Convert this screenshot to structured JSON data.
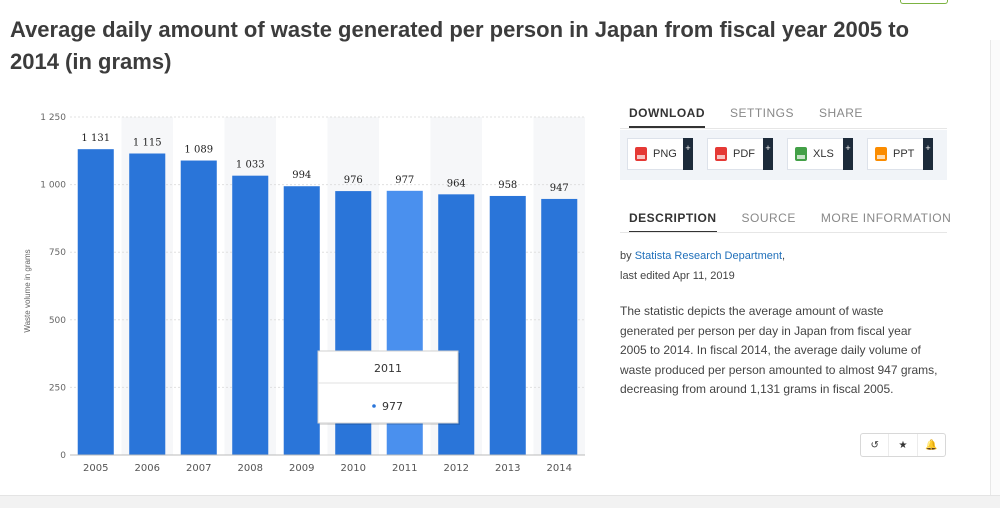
{
  "title": "Average daily amount of waste generated per person in Japan from fiscal year 2005 to 2014 (in grams)",
  "chart_data": {
    "type": "bar",
    "categories": [
      "2005",
      "2006",
      "2007",
      "2008",
      "2009",
      "2010",
      "2011",
      "2012",
      "2013",
      "2014"
    ],
    "values": [
      1131,
      1115,
      1089,
      1033,
      994,
      976,
      977,
      964,
      958,
      947
    ],
    "value_labels": [
      "1 131",
      "1 115",
      "1 089",
      "1 033",
      "994",
      "976",
      "977",
      "964",
      "958",
      "947"
    ],
    "ylabel": "Waste volume in grams",
    "ylim": [
      0,
      1250
    ],
    "yticks": [
      0,
      250,
      500,
      750,
      1000,
      1250
    ],
    "ytick_labels": [
      "0",
      "250",
      "500",
      "750",
      "1 000",
      "1 250"
    ],
    "grid": true,
    "bar_color": "#2a75d9",
    "highlight_color": "#4a90ee",
    "highlight_index": 6,
    "tooltip": {
      "title": "2011",
      "value": "977"
    }
  },
  "download_tabs": [
    "DOWNLOAD",
    "SETTINGS",
    "SHARE"
  ],
  "download_buttons": [
    {
      "label": "PNG",
      "color": "#e53935"
    },
    {
      "label": "PDF",
      "color": "#e53935"
    },
    {
      "label": "XLS",
      "color": "#43a047"
    },
    {
      "label": "PPT",
      "color": "#fb8c00"
    }
  ],
  "plus_symbol": "+",
  "description_tabs": [
    "DESCRIPTION",
    "SOURCE",
    "MORE INFORMATION"
  ],
  "meta": {
    "by_prefix": "by ",
    "author": "Statista Research Department",
    "by_suffix": ",",
    "edited": "last edited Apr 11, 2019"
  },
  "description": "The statistic depicts the average amount of waste generated per person per day in Japan from fiscal year 2005 to 2014. In fiscal 2014, the average daily volume of waste produced per person amounted to almost 947 grams, decreasing from around 1,131 grams in fiscal 2005.",
  "actions": [
    {
      "icon": "history-icon",
      "glyph": "↺"
    },
    {
      "icon": "star-icon",
      "glyph": "★"
    },
    {
      "icon": "bell-icon",
      "glyph": "🔔"
    }
  ]
}
